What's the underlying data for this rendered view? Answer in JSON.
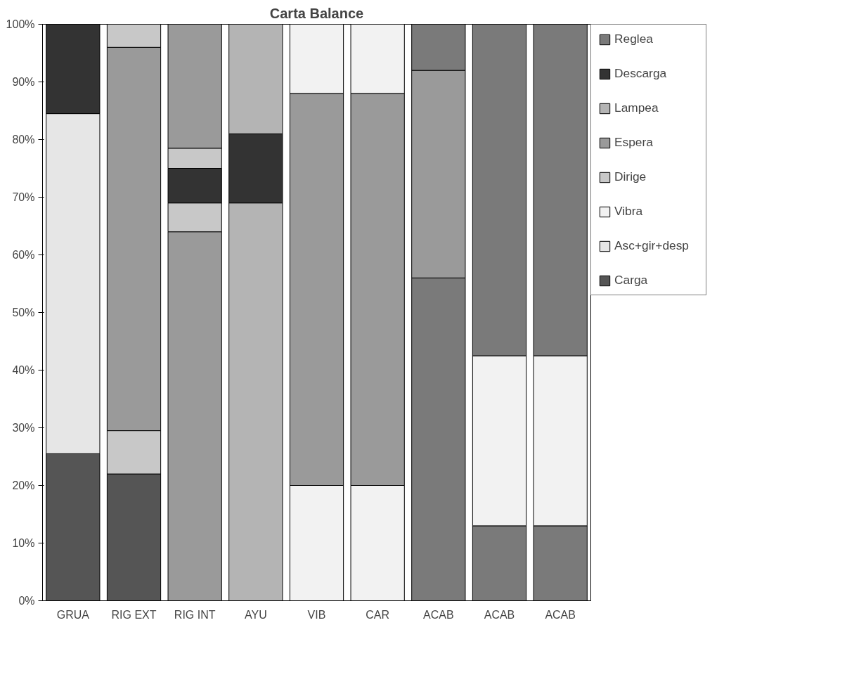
{
  "chart_data": {
    "type": "bar",
    "title": "Carta Balance",
    "stacked": true,
    "categories": [
      "GRUA",
      "RIG EXT",
      "RIG INT",
      "AYU",
      "VIB",
      "CAR",
      "ACAB",
      "ACAB",
      "ACAB"
    ],
    "series": [
      {
        "name": "Carga",
        "color": "#555555",
        "values": [
          25.5,
          22,
          null,
          null,
          null,
          null,
          null,
          null,
          null
        ]
      },
      {
        "name": "Asc+gir+desp",
        "color": "#e6e6e6",
        "values": [
          59,
          null,
          null,
          null,
          null,
          null,
          null,
          null,
          null
        ]
      },
      {
        "color": "#c8c8c8",
        "values": [
          null,
          7.5,
          null,
          null,
          null,
          null,
          null,
          null,
          null
        ]
      },
      {
        "color": "#b4b4b4",
        "values": [
          null,
          null,
          null,
          69,
          null,
          null,
          null,
          null,
          null
        ]
      },
      {
        "color": "#f2f2f2",
        "values": [
          null,
          null,
          null,
          null,
          20,
          20,
          null,
          null,
          null
        ]
      },
      {
        "color": "#7a7a7a",
        "values": [
          null,
          null,
          null,
          null,
          null,
          null,
          56,
          13,
          13
        ]
      },
      {
        "color": "#9a9a9a",
        "values": [
          null,
          66.5,
          64,
          null,
          68,
          68,
          36,
          null,
          null
        ]
      },
      {
        "name": "Vibra",
        "color": "#f2f2f2",
        "values": [
          null,
          null,
          null,
          null,
          12,
          12,
          null,
          29.5,
          29.5
        ]
      },
      {
        "name": "Dirige",
        "color": "#c8c8c8",
        "values": [
          null,
          4,
          5,
          null,
          null,
          null,
          null,
          null,
          null
        ]
      },
      {
        "color": "#333333",
        "values": [
          null,
          null,
          6,
          12,
          null,
          null,
          null,
          null,
          null
        ]
      },
      {
        "color": "#c8c8c8",
        "values": [
          null,
          null,
          3.5,
          null,
          null,
          null,
          null,
          null,
          null
        ]
      },
      {
        "name": "Espera",
        "color": "#9a9a9a",
        "values": [
          null,
          null,
          21.5,
          null,
          null,
          null,
          null,
          null,
          null
        ]
      },
      {
        "name": "Lampea",
        "color": "#b4b4b4",
        "values": [
          null,
          null,
          null,
          19,
          null,
          null,
          null,
          null,
          null
        ]
      },
      {
        "name": "Descarga",
        "color": "#333333",
        "values": [
          15.5,
          null,
          null,
          null,
          null,
          null,
          null,
          null,
          null
        ]
      },
      {
        "name": "Reglea",
        "color": "#7a7a7a",
        "values": [
          null,
          null,
          null,
          null,
          null,
          null,
          8,
          57.5,
          57.5
        ]
      }
    ],
    "ylim": [
      0,
      100
    ],
    "yticks": [
      {
        "value": 0,
        "label": "0%"
      },
      {
        "value": 10,
        "label": "10%"
      },
      {
        "value": 20,
        "label": "20%"
      },
      {
        "value": 30,
        "label": "30%"
      },
      {
        "value": 40,
        "label": "40%"
      },
      {
        "value": 50,
        "label": "50%"
      },
      {
        "value": 60,
        "label": "60%"
      },
      {
        "value": 70,
        "label": "70%"
      },
      {
        "value": 80,
        "label": "80%"
      },
      {
        "value": 90,
        "label": "90%"
      },
      {
        "value": 100,
        "label": "100%"
      }
    ],
    "grid": false,
    "legend": "right"
  }
}
